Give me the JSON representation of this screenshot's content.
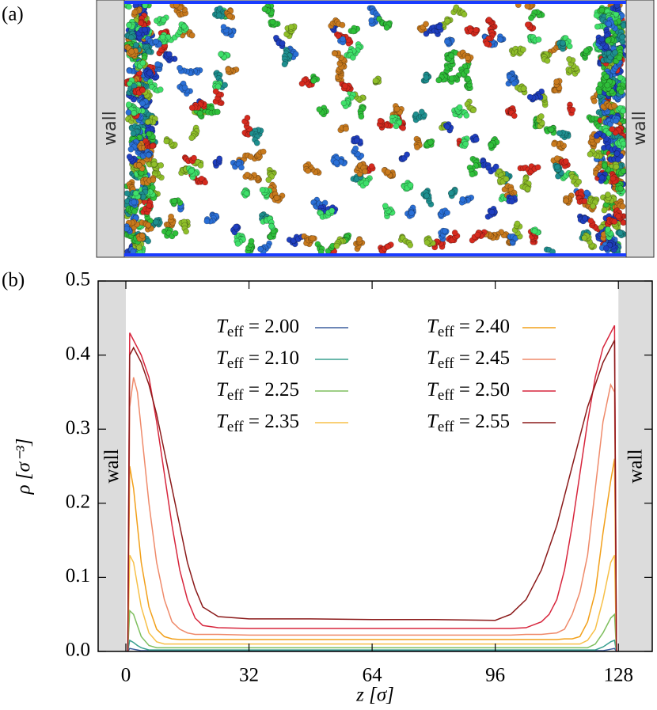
{
  "snapshot": {
    "label": "(a)",
    "wall_labels": [
      "wall",
      "wall"
    ]
  },
  "chart_data": {
    "type": "line",
    "panel_label": "(b)",
    "x_label": "z [σ]",
    "y_label": "ρ [σ⁻³]",
    "annotations": [
      "wall",
      "wall"
    ],
    "x": [
      0.5,
      1,
      2,
      3,
      4,
      6,
      8,
      10,
      12,
      14,
      16,
      18,
      20,
      24,
      32,
      48,
      64,
      80,
      96,
      100,
      104,
      108,
      110,
      112,
      114,
      116,
      118,
      120,
      122,
      124,
      126,
      127,
      127.5
    ],
    "xlim": [
      -7.2,
      136.8
    ],
    "xticks": [
      0,
      32,
      64,
      96,
      128
    ],
    "ylim": [
      0,
      0.5
    ],
    "yticks": [
      {
        "value": 0,
        "label": "0.0"
      },
      0.1,
      0.2,
      0.3,
      0.4,
      0.5
    ],
    "series": [
      {
        "name": "Teff = 2.00",
        "color": "#3b5e9e",
        "values": [
          0,
          0.004,
          0.003,
          0.002,
          0.001,
          0.001,
          0.001,
          0.001,
          0.001,
          0.001,
          0.001,
          0.001,
          0.001,
          0.001,
          0.001,
          0.001,
          0.001,
          0.001,
          0.001,
          0.001,
          0.001,
          0.001,
          0.001,
          0.001,
          0.001,
          0.001,
          0.001,
          0.001,
          0.001,
          0.001,
          0.003,
          0.004,
          0
        ]
      },
      {
        "name": "Teff = 2.10",
        "color": "#3aa08f",
        "values": [
          0,
          0.015,
          0.012,
          0.008,
          0.005,
          0.002,
          0.002,
          0.002,
          0.002,
          0.002,
          0.002,
          0.002,
          0.002,
          0.002,
          0.002,
          0.002,
          0.002,
          0.002,
          0.002,
          0.002,
          0.002,
          0.002,
          0.002,
          0.002,
          0.002,
          0.002,
          0.002,
          0.002,
          0.002,
          0.006,
          0.013,
          0.015,
          0
        ]
      },
      {
        "name": "Teff = 2.25",
        "color": "#7fbf5f",
        "values": [
          0,
          0.055,
          0.05,
          0.035,
          0.02,
          0.008,
          0.005,
          0.005,
          0.005,
          0.005,
          0.005,
          0.005,
          0.005,
          0.005,
          0.005,
          0.005,
          0.005,
          0.005,
          0.005,
          0.005,
          0.005,
          0.005,
          0.005,
          0.005,
          0.005,
          0.005,
          0.005,
          0.005,
          0.01,
          0.025,
          0.045,
          0.05,
          0
        ]
      },
      {
        "name": "Teff = 2.35",
        "color": "#f7c048",
        "values": [
          0,
          0.13,
          0.12,
          0.09,
          0.06,
          0.025,
          0.013,
          0.01,
          0.01,
          0.01,
          0.01,
          0.01,
          0.01,
          0.01,
          0.01,
          0.01,
          0.01,
          0.01,
          0.01,
          0.01,
          0.01,
          0.01,
          0.01,
          0.01,
          0.01,
          0.01,
          0.01,
          0.015,
          0.03,
          0.07,
          0.12,
          0.13,
          0
        ]
      },
      {
        "name": "Teff = 2.40",
        "color": "#f2a01a",
        "values": [
          0,
          0.25,
          0.22,
          0.17,
          0.12,
          0.06,
          0.03,
          0.02,
          0.017,
          0.016,
          0.016,
          0.016,
          0.016,
          0.016,
          0.016,
          0.016,
          0.016,
          0.016,
          0.016,
          0.016,
          0.016,
          0.016,
          0.016,
          0.016,
          0.017,
          0.017,
          0.02,
          0.04,
          0.08,
          0.16,
          0.23,
          0.26,
          0
        ]
      },
      {
        "name": "Teff = 2.45",
        "color": "#ef8a6a",
        "values": [
          0,
          0.33,
          0.37,
          0.35,
          0.3,
          0.2,
          0.12,
          0.07,
          0.04,
          0.03,
          0.025,
          0.023,
          0.023,
          0.023,
          0.022,
          0.022,
          0.022,
          0.022,
          0.022,
          0.022,
          0.023,
          0.023,
          0.024,
          0.025,
          0.03,
          0.05,
          0.08,
          0.13,
          0.22,
          0.31,
          0.36,
          0.35,
          0
        ]
      },
      {
        "name": "Teff = 2.50",
        "color": "#d7263d",
        "values": [
          0,
          0.43,
          0.42,
          0.41,
          0.4,
          0.37,
          0.31,
          0.24,
          0.17,
          0.11,
          0.07,
          0.045,
          0.035,
          0.032,
          0.031,
          0.031,
          0.031,
          0.031,
          0.031,
          0.031,
          0.032,
          0.04,
          0.05,
          0.07,
          0.11,
          0.17,
          0.24,
          0.31,
          0.37,
          0.41,
          0.43,
          0.44,
          0
        ]
      },
      {
        "name": "Teff = 2.55",
        "color": "#8b1a1a",
        "values": [
          0,
          0.4,
          0.41,
          0.4,
          0.39,
          0.36,
          0.32,
          0.27,
          0.22,
          0.17,
          0.12,
          0.085,
          0.06,
          0.047,
          0.044,
          0.044,
          0.043,
          0.043,
          0.042,
          0.05,
          0.07,
          0.11,
          0.14,
          0.17,
          0.21,
          0.25,
          0.29,
          0.33,
          0.36,
          0.39,
          0.41,
          0.42,
          0
        ]
      }
    ]
  }
}
